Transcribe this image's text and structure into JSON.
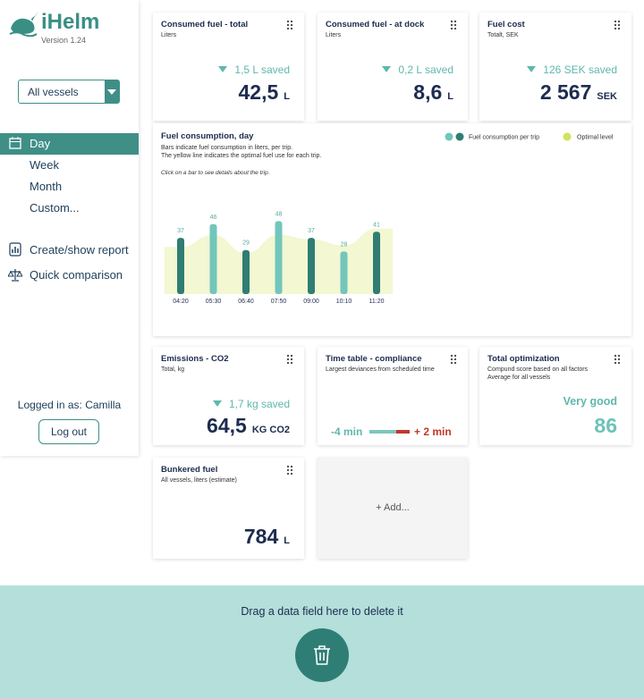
{
  "sidebar": {
    "logo": "iHelm",
    "version": "Version 1.24",
    "vessel_select": "All vessels",
    "periods": [
      "Day",
      "Week",
      "Month",
      "Custom..."
    ],
    "actions": [
      "Create/show report",
      "Quick comparison"
    ],
    "logged_in": "Logged in as: Camilla",
    "logout": "Log out"
  },
  "cards": [
    {
      "title": "Consumed fuel - total",
      "subtitle": "Liters",
      "saved": "1,5 L saved",
      "value": "42,5",
      "unit": "L"
    },
    {
      "title": "Consumed fuel - at dock",
      "subtitle": "Liters",
      "saved": "0,2 L saved",
      "value": "8,6",
      "unit": "L"
    },
    {
      "title": "Fuel cost",
      "subtitle": "Totalt, SEK",
      "saved": "126 SEK saved",
      "value": "2 567",
      "unit": "SEK"
    },
    {
      "title": "Emissions - CO2",
      "subtitle": "Total, kg",
      "saved": "1,7 kg saved",
      "value": "64,5",
      "unit": "KG CO2"
    },
    {
      "title": "Time table - compliance",
      "subtitle": "Largest deviances from scheduled time",
      "early": "-4 min",
      "late": "+ 2 min"
    },
    {
      "title": "Total optimization",
      "subtitle": "Compund score based on all factors",
      "subtitle2": "Average for all vessels",
      "rating": "Very good",
      "score": "86"
    },
    {
      "title": "Bunkered fuel",
      "subtitle": "All vessels, liters (estimate)",
      "value": "784",
      "unit": "L"
    }
  ],
  "add_card": "+ Add...",
  "chart_data": {
    "type": "bar",
    "title": "Fuel consumption, day",
    "subtitle": [
      "Bars indicate fuel consumption in liters, per trip.",
      "The yellow line indicates the optimal fuel use for each trip."
    ],
    "note": "Click on a bar to see details about the trip.",
    "categories": [
      "04:20",
      "05:30",
      "06:40",
      "07:50",
      "09:00",
      "10:10",
      "11:20"
    ],
    "series": [
      {
        "name": "Fuel consumption per trip",
        "colors": [
          "#2f7d73",
          "#72c6bb",
          "#2f7d73",
          "#72c6bb",
          "#2f7d73",
          "#72c6bb",
          "#2f7d73"
        ],
        "values": [
          37,
          46,
          29,
          48,
          37,
          28,
          41
        ]
      },
      {
        "name": "Optimal level",
        "color": "#d3e25c",
        "values": [
          31,
          39,
          27,
          39,
          36,
          32,
          43
        ]
      }
    ],
    "ylim": [
      0,
      50
    ]
  },
  "drop_zone": "Drag a data field here to delete it"
}
